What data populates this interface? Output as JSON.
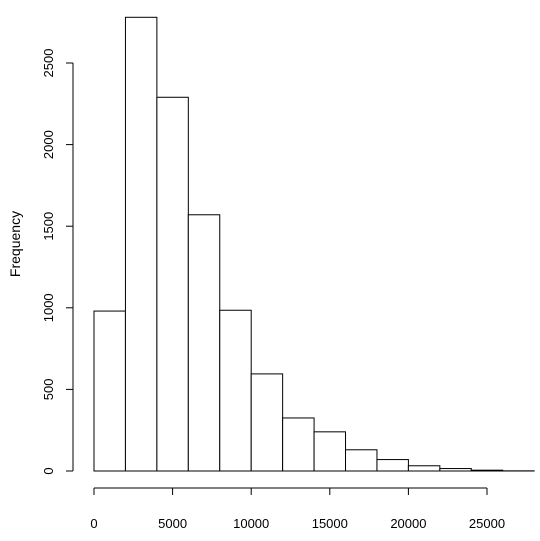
{
  "chart_data": {
    "type": "bar",
    "title": "",
    "xlabel": "",
    "ylabel": "Frequency",
    "bin_width": 2000,
    "bins": [
      {
        "start": 0,
        "end": 2000,
        "value": 980
      },
      {
        "start": 2000,
        "end": 4000,
        "value": 2780
      },
      {
        "start": 4000,
        "end": 6000,
        "value": 2290
      },
      {
        "start": 6000,
        "end": 8000,
        "value": 1570
      },
      {
        "start": 8000,
        "end": 10000,
        "value": 985
      },
      {
        "start": 10000,
        "end": 12000,
        "value": 595
      },
      {
        "start": 12000,
        "end": 14000,
        "value": 325
      },
      {
        "start": 14000,
        "end": 16000,
        "value": 240
      },
      {
        "start": 16000,
        "end": 18000,
        "value": 130
      },
      {
        "start": 18000,
        "end": 20000,
        "value": 70
      },
      {
        "start": 20000,
        "end": 22000,
        "value": 32
      },
      {
        "start": 22000,
        "end": 24000,
        "value": 15
      },
      {
        "start": 24000,
        "end": 26000,
        "value": 5
      },
      {
        "start": 26000,
        "end": 28000,
        "value": 1
      }
    ],
    "xlim": [
      0,
      28000
    ],
    "ylim": [
      0,
      2780
    ],
    "x_ticks": [
      0,
      5000,
      10000,
      15000,
      20000,
      25000
    ],
    "x_tick_labels": [
      "0",
      "5000",
      "10000",
      "15000",
      "20000",
      "25000"
    ],
    "y_ticks": [
      0,
      500,
      1000,
      1500,
      2000,
      2500
    ],
    "y_tick_labels": [
      "0",
      "500",
      "1000",
      "1500",
      "2000",
      "2500"
    ],
    "grid": false,
    "legend": "none"
  }
}
